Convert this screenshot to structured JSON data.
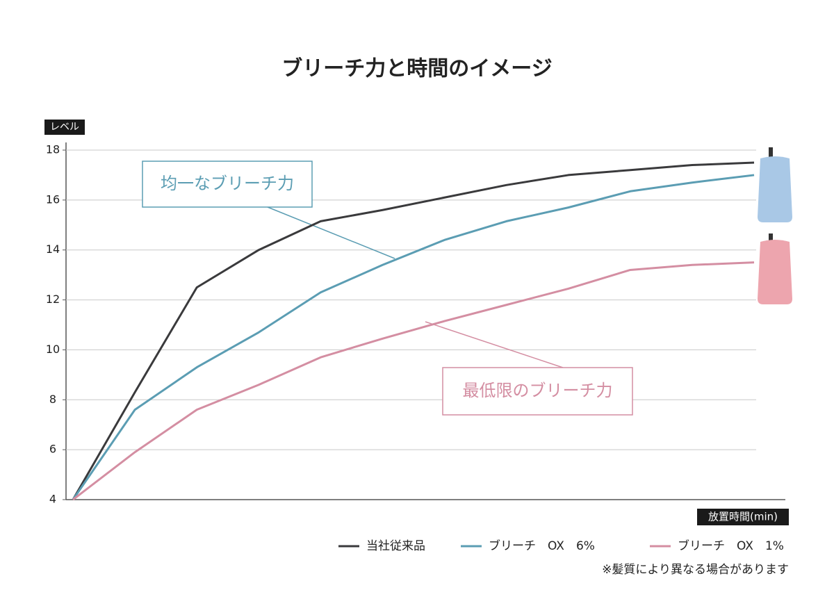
{
  "chart_data": {
    "type": "line",
    "title": "ブリーチ力と時間のイメージ",
    "y_label": "レベル",
    "x_label": "放置時間(min)",
    "categories": [
      null,
      null,
      null,
      null,
      null,
      null,
      null,
      null,
      null,
      null,
      null,
      null
    ],
    "ylim": [
      4,
      18
    ],
    "yticks": [
      4,
      6,
      8,
      10,
      12,
      14,
      16,
      18
    ],
    "grid": true,
    "series": [
      {
        "name": "当社従来品",
        "color": "#3a3a3c",
        "values": [
          4,
          8.3,
          12.5,
          14.0,
          15.15,
          15.6,
          16.1,
          16.6,
          17.0,
          17.2,
          17.4,
          17.5
        ]
      },
      {
        "name": "ブリーチ　OX　6%",
        "color": "#5b9db3",
        "values": [
          4,
          7.6,
          9.3,
          10.7,
          12.3,
          13.4,
          14.4,
          15.15,
          15.7,
          16.35,
          16.7,
          17.0
        ]
      },
      {
        "name": "ブリーチ　OX　1%",
        "color": "#d48ea2",
        "values": [
          4,
          5.9,
          7.6,
          8.6,
          9.7,
          10.45,
          11.15,
          11.8,
          12.45,
          13.2,
          13.4,
          13.5
        ]
      }
    ],
    "annotations": [
      {
        "text": "均一なブリーチ力",
        "color": "#5b9db3"
      },
      {
        "text": "最低限のブリーチ力",
        "color": "#d48ea2"
      }
    ],
    "note": "※髪質により異なる場合があります"
  }
}
